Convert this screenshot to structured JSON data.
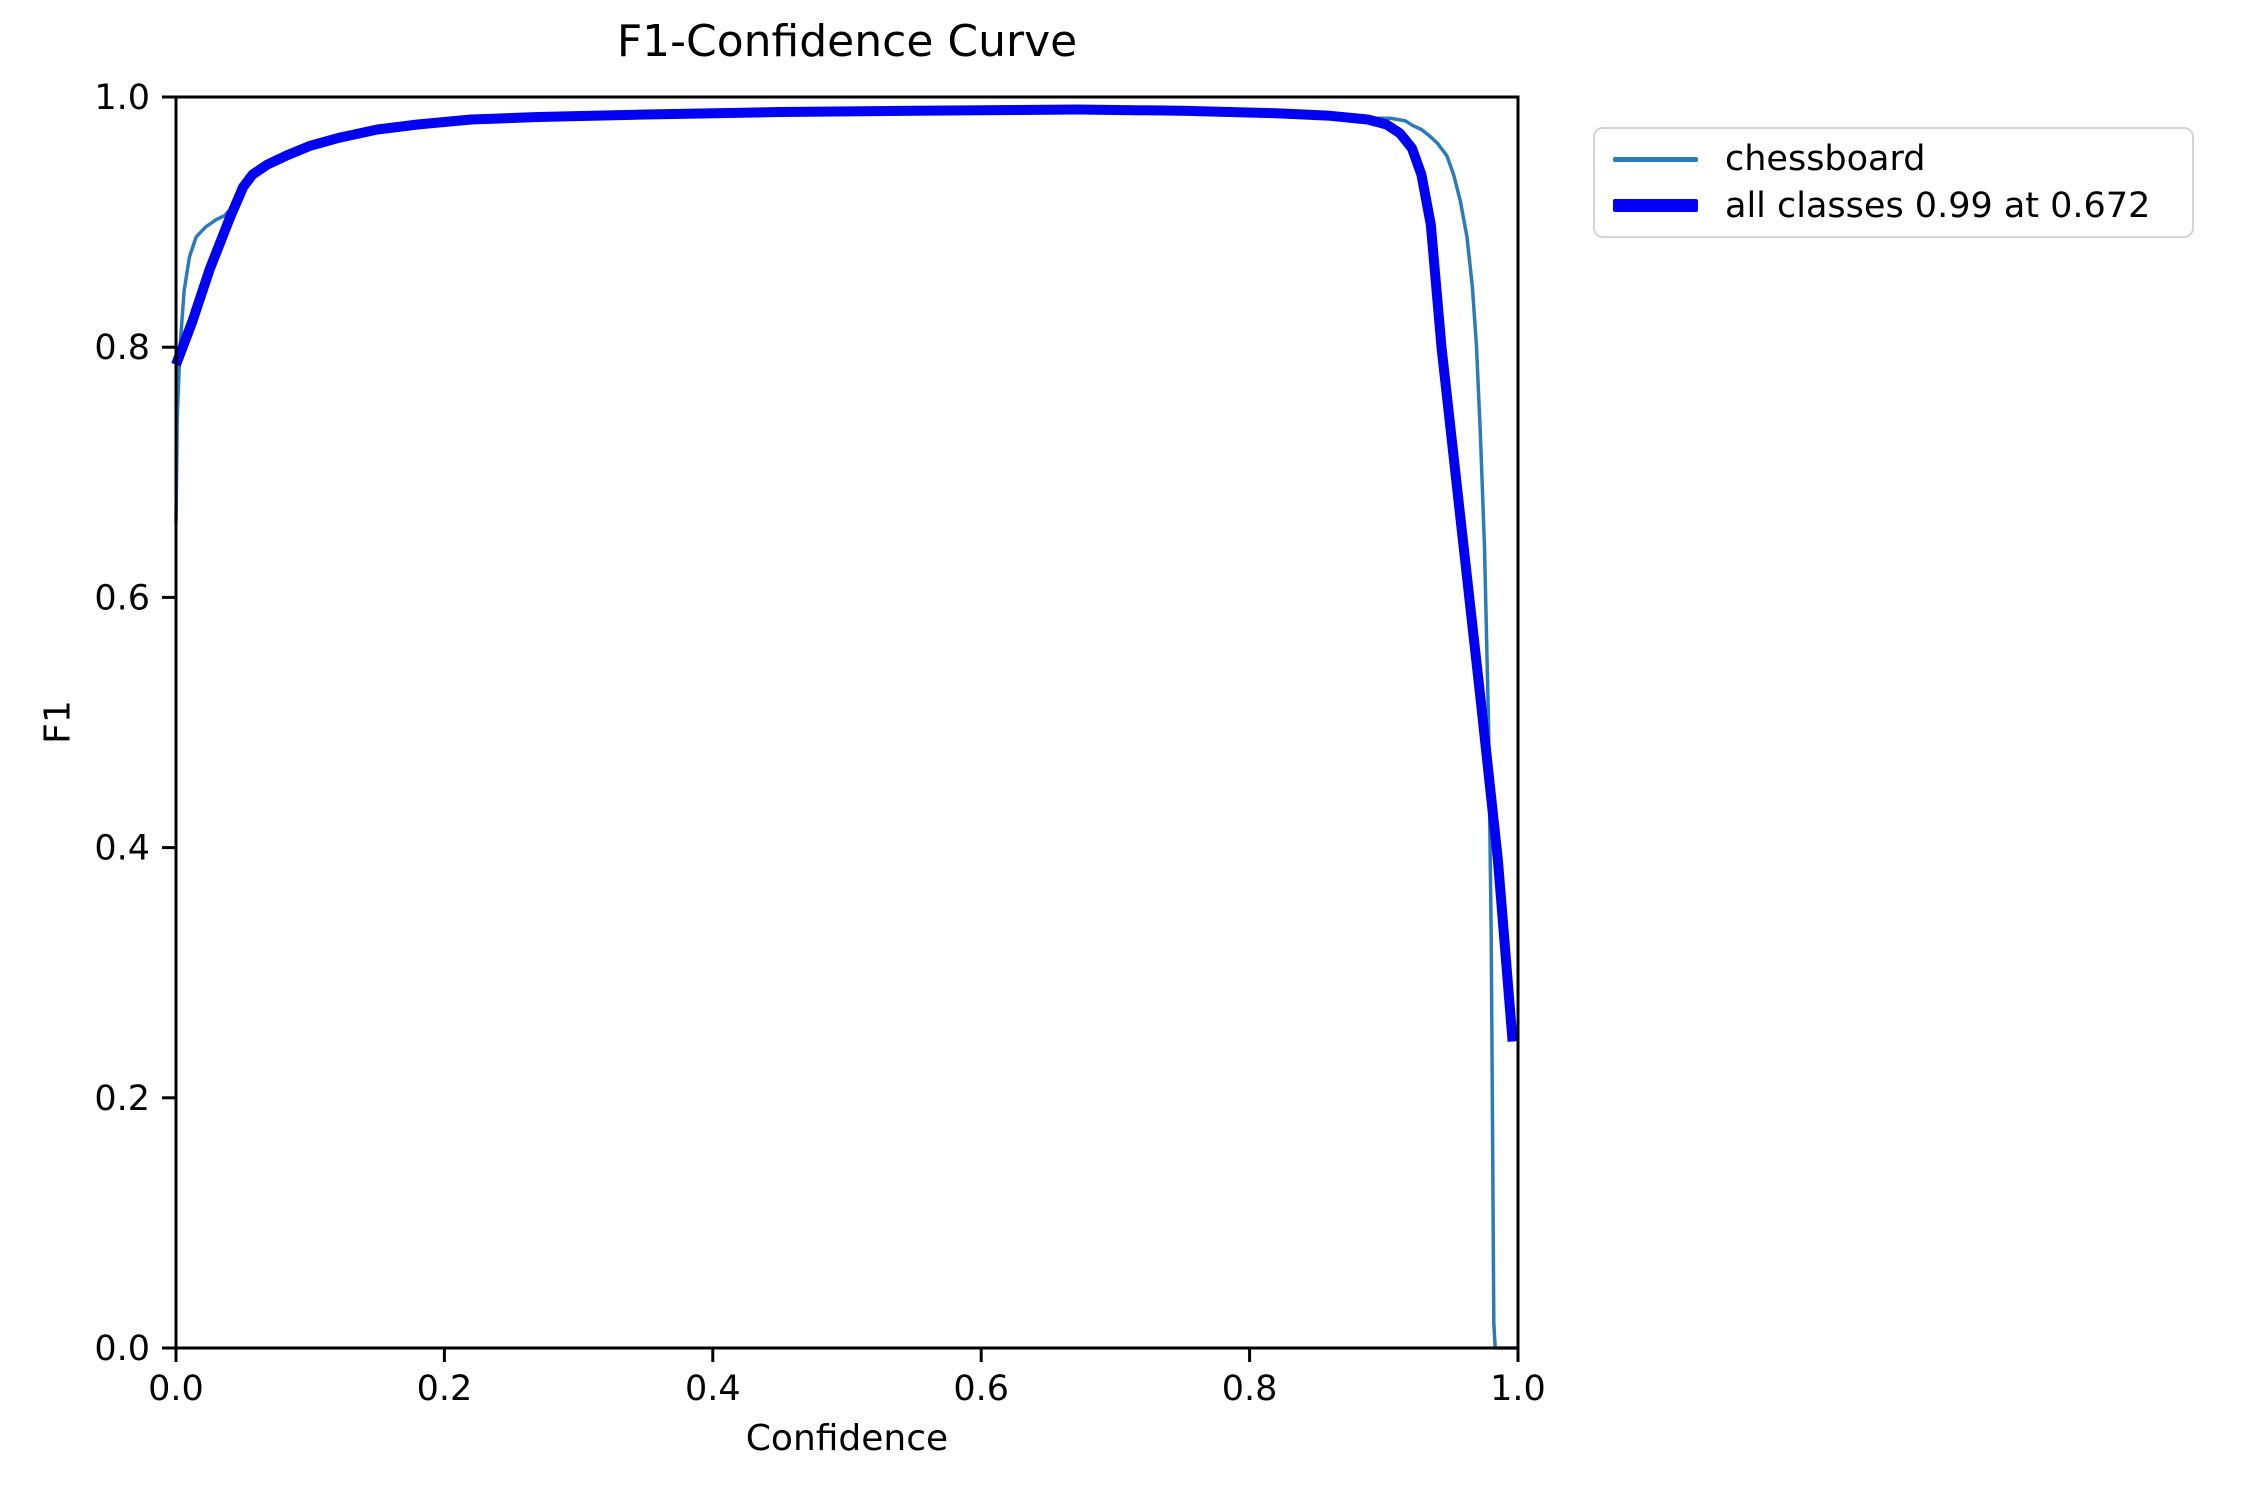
{
  "chart_data": {
    "type": "line",
    "title": "F1-Confidence Curve",
    "xlabel": "Confidence",
    "ylabel": "F1",
    "xlim": [
      0.0,
      1.0
    ],
    "ylim": [
      0.0,
      1.0
    ],
    "xticks": [
      "0.0",
      "0.2",
      "0.4",
      "0.6",
      "0.8",
      "1.0"
    ],
    "yticks": [
      "0.0",
      "0.2",
      "0.4",
      "0.6",
      "0.8",
      "1.0"
    ],
    "grid": false,
    "background_color": "#ffffff",
    "spine_color": "#000000",
    "legend": {
      "position": "outside-top-right",
      "entries": [
        {
          "label": "chessboard",
          "color": "#2b7bba",
          "style": "thin"
        },
        {
          "label": "all classes 0.99 at 0.672",
          "color": "#0000f2",
          "style": "thick"
        }
      ]
    },
    "series": [
      {
        "name": "chessboard",
        "color": "#2b7bba",
        "width": 3.5,
        "points": [
          [
            0.0,
            0.66
          ],
          [
            0.001,
            0.745
          ],
          [
            0.003,
            0.8
          ],
          [
            0.006,
            0.845
          ],
          [
            0.01,
            0.872
          ],
          [
            0.015,
            0.888
          ],
          [
            0.022,
            0.896
          ],
          [
            0.03,
            0.902
          ],
          [
            0.036,
            0.905
          ],
          [
            0.042,
            0.912
          ],
          [
            0.05,
            0.925
          ],
          [
            0.06,
            0.938
          ],
          [
            0.072,
            0.947
          ],
          [
            0.085,
            0.954
          ],
          [
            0.1,
            0.96
          ],
          [
            0.12,
            0.966
          ],
          [
            0.14,
            0.972
          ],
          [
            0.18,
            0.978
          ],
          [
            0.22,
            0.982
          ],
          [
            0.27,
            0.984
          ],
          [
            0.35,
            0.986
          ],
          [
            0.45,
            0.988
          ],
          [
            0.55,
            0.989
          ],
          [
            0.672,
            0.99
          ],
          [
            0.75,
            0.989
          ],
          [
            0.82,
            0.987
          ],
          [
            0.86,
            0.985
          ],
          [
            0.89,
            0.983
          ],
          [
            0.905,
            0.983
          ],
          [
            0.916,
            0.981
          ],
          [
            0.922,
            0.977
          ],
          [
            0.928,
            0.974
          ],
          [
            0.934,
            0.969
          ],
          [
            0.94,
            0.963
          ],
          [
            0.947,
            0.953
          ],
          [
            0.952,
            0.938
          ],
          [
            0.957,
            0.917
          ],
          [
            0.962,
            0.888
          ],
          [
            0.966,
            0.848
          ],
          [
            0.969,
            0.802
          ],
          [
            0.972,
            0.73
          ],
          [
            0.975,
            0.64
          ],
          [
            0.978,
            0.5
          ],
          [
            0.98,
            0.33
          ],
          [
            0.981,
            0.18
          ],
          [
            0.982,
            0.02
          ],
          [
            0.983,
            0.0
          ],
          [
            1.0,
            0.0
          ]
        ]
      },
      {
        "name": "all classes 0.99 at 0.672",
        "color": "#0000f2",
        "width": 10,
        "points": [
          [
            0.0,
            0.786
          ],
          [
            0.012,
            0.82
          ],
          [
            0.025,
            0.862
          ],
          [
            0.04,
            0.903
          ],
          [
            0.05,
            0.928
          ],
          [
            0.057,
            0.938
          ],
          [
            0.068,
            0.946
          ],
          [
            0.082,
            0.953
          ],
          [
            0.1,
            0.961
          ],
          [
            0.12,
            0.967
          ],
          [
            0.15,
            0.974
          ],
          [
            0.18,
            0.978
          ],
          [
            0.22,
            0.982
          ],
          [
            0.27,
            0.984
          ],
          [
            0.35,
            0.986
          ],
          [
            0.45,
            0.988
          ],
          [
            0.55,
            0.989
          ],
          [
            0.672,
            0.99
          ],
          [
            0.75,
            0.989
          ],
          [
            0.82,
            0.987
          ],
          [
            0.86,
            0.985
          ],
          [
            0.888,
            0.982
          ],
          [
            0.902,
            0.978
          ],
          [
            0.912,
            0.971
          ],
          [
            0.921,
            0.959
          ],
          [
            0.928,
            0.938
          ],
          [
            0.935,
            0.898
          ],
          [
            0.943,
            0.8
          ],
          [
            0.958,
            0.655
          ],
          [
            0.972,
            0.52
          ],
          [
            0.985,
            0.39
          ],
          [
            0.996,
            0.245
          ]
        ]
      }
    ]
  }
}
